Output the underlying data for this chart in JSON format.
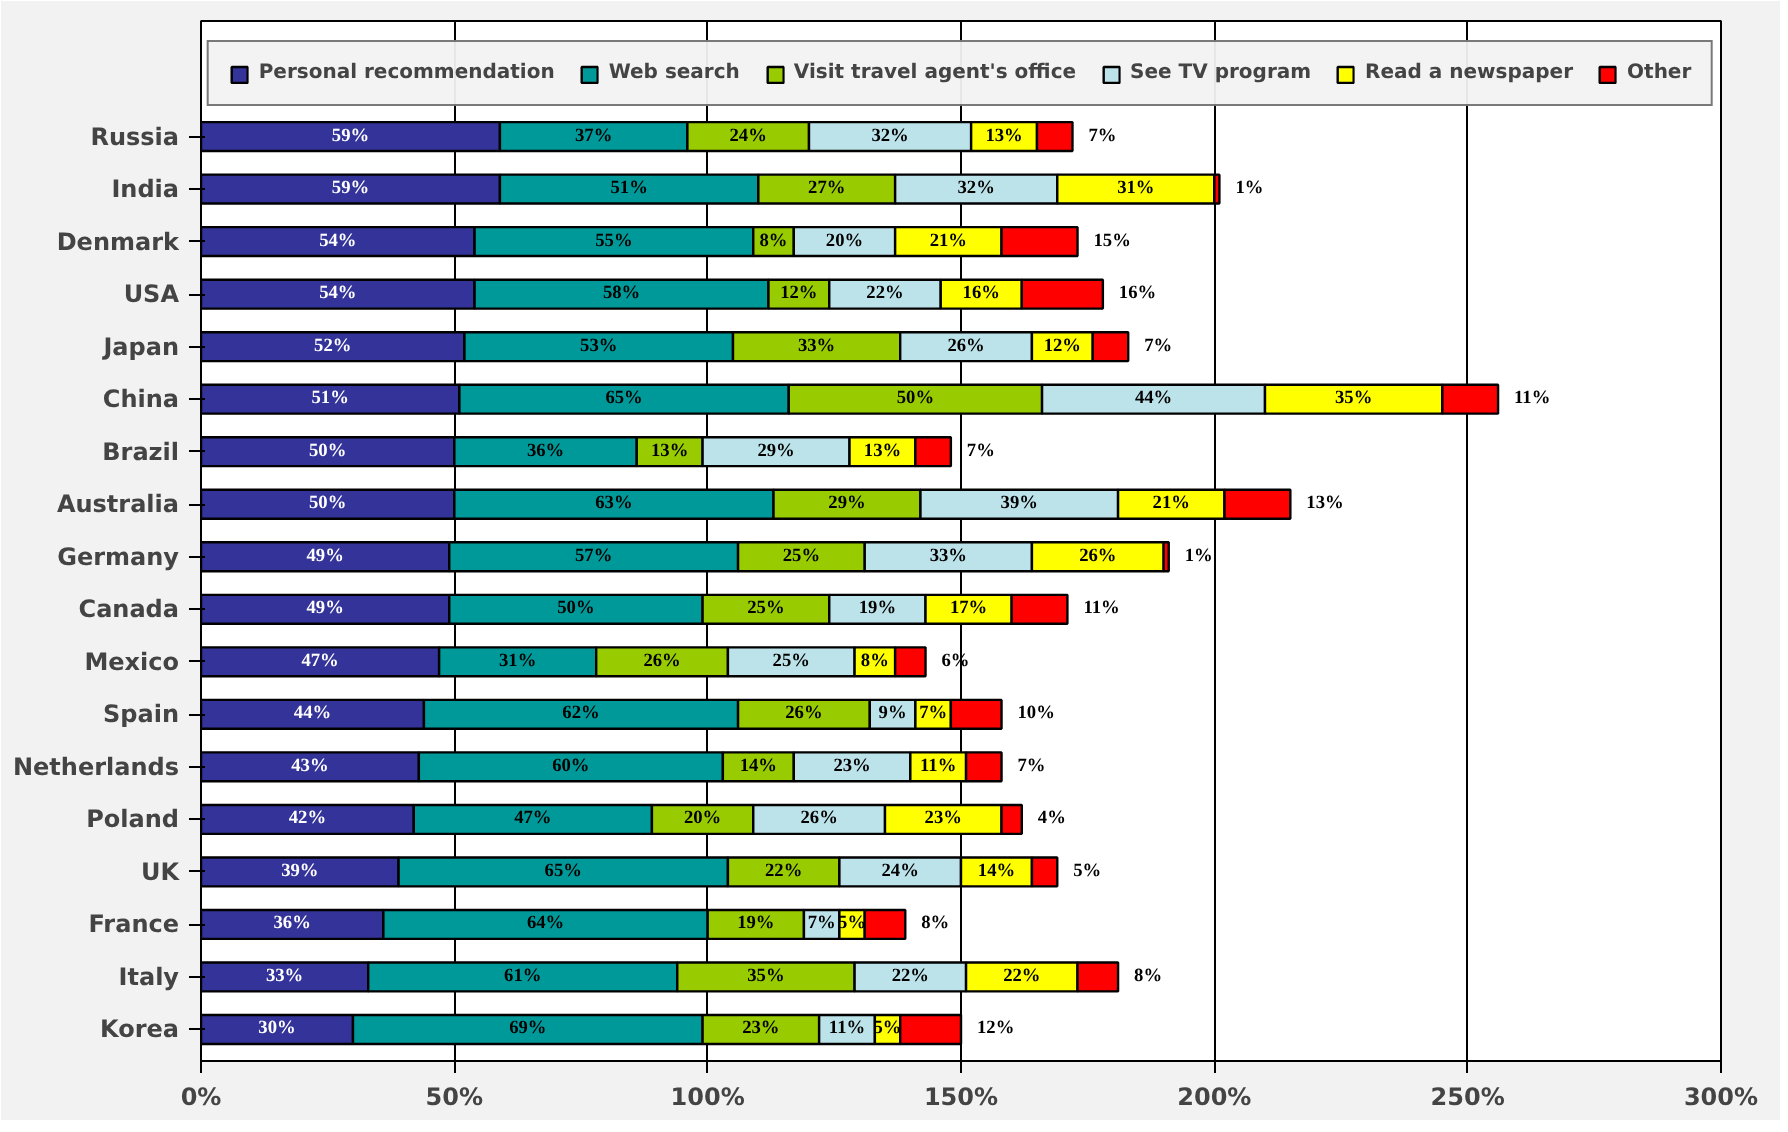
{
  "chart_data": {
    "type": "bar",
    "orientation": "horizontal",
    "stacked": true,
    "grid": "x",
    "legend": "top",
    "categories": [
      "Russia",
      "India",
      "Denmark",
      "USA",
      "Japan",
      "China",
      "Brazil",
      "Australia",
      "Germany",
      "Canada",
      "Mexico",
      "Spain",
      "Netherlands",
      "Poland",
      "UK",
      "France",
      "Italy",
      "Korea"
    ],
    "xlim": [
      0,
      300
    ],
    "xticks": [
      {
        "value": 0,
        "label": "0%"
      },
      {
        "value": 50,
        "label": "50%"
      },
      {
        "value": 100,
        "label": "100%"
      },
      {
        "value": 150,
        "label": "150%"
      },
      {
        "value": 200,
        "label": "200%"
      },
      {
        "value": 250,
        "label": "250%"
      },
      {
        "value": 300,
        "label": "300%"
      }
    ],
    "series": [
      {
        "name": "Personal recommendation",
        "color": "#333399",
        "values": [
          59,
          59,
          54,
          54,
          52,
          51,
          50,
          50,
          49,
          49,
          47,
          44,
          43,
          42,
          39,
          36,
          33,
          30
        ],
        "value_labels": [
          "59%",
          "59%",
          "54%",
          "54%",
          "52%",
          "51%",
          "50%",
          "50%",
          "49%",
          "49%",
          "47%",
          "44%",
          "43%",
          "42%",
          "39%",
          "36%",
          "33%",
          "30%"
        ]
      },
      {
        "name": "Web search",
        "color": "#009999",
        "values": [
          37,
          51,
          55,
          58,
          53,
          65,
          36,
          63,
          57,
          50,
          31,
          62,
          60,
          47,
          65,
          64,
          61,
          69
        ],
        "value_labels": [
          "37%",
          "51%",
          "55%",
          "58%",
          "53%",
          "65%",
          "36%",
          "63%",
          "57%",
          "50%",
          "31%",
          "62%",
          "60%",
          "47%",
          "65%",
          "64%",
          "61%",
          "69%"
        ]
      },
      {
        "name": "Visit travel agent's office",
        "color": "#99cc00",
        "values": [
          24,
          27,
          8,
          12,
          33,
          50,
          13,
          29,
          25,
          25,
          26,
          26,
          14,
          20,
          22,
          19,
          35,
          23
        ],
        "value_labels": [
          "24%",
          "27%",
          "8%",
          "12%",
          "33%",
          "50%",
          "13%",
          "29%",
          "25%",
          "25%",
          "26%",
          "26%",
          "14%",
          "20%",
          "22%",
          "19%",
          "35%",
          "23%"
        ]
      },
      {
        "name": "See TV program",
        "color": "#bde3ea",
        "values": [
          32,
          32,
          20,
          22,
          26,
          44,
          29,
          39,
          33,
          19,
          25,
          9,
          23,
          26,
          24,
          7,
          22,
          11
        ],
        "value_labels": [
          "32%",
          "32%",
          "20%",
          "22%",
          "26%",
          "44%",
          "29%",
          "39%",
          "33%",
          "19%",
          "25%",
          "9%",
          "23%",
          "26%",
          "24%",
          "7%",
          "22%",
          "11%"
        ]
      },
      {
        "name": "Read a newspaper",
        "color": "#ffff00",
        "values": [
          13,
          31,
          21,
          16,
          12,
          35,
          13,
          21,
          26,
          17,
          8,
          7,
          11,
          23,
          14,
          5,
          22,
          5
        ],
        "value_labels": [
          "13%",
          "31%",
          "21%",
          "16%",
          "12%",
          "35%",
          "13%",
          "21%",
          "26%",
          "17%",
          "8%",
          "7%",
          "11%",
          "23%",
          "14%",
          "5%",
          "22%",
          "5%"
        ]
      },
      {
        "name": "Other",
        "color": "#ff0000",
        "values": [
          7,
          1,
          15,
          16,
          7,
          11,
          7,
          13,
          1,
          11,
          6,
          10,
          7,
          4,
          5,
          8,
          8,
          12
        ],
        "value_labels": [
          "7%",
          "1%",
          "15%",
          "16%",
          "7%",
          "11%",
          "7%",
          "13%",
          "1%",
          "11%",
          "6%",
          "10%",
          "7%",
          "4%",
          "5%",
          "8%",
          "8%",
          "12%"
        ]
      }
    ]
  }
}
